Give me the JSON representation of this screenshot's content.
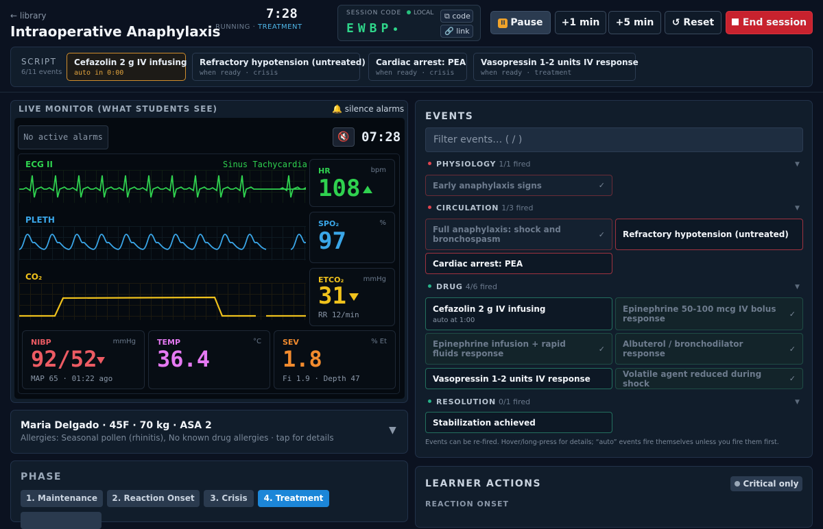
{
  "header": {
    "back_label": "← library",
    "title": "Intraoperative Anaphylaxis",
    "clock": "7:28",
    "run_status": "RUNNING",
    "run_sep": " · ",
    "run_phase": "TREATMENT"
  },
  "session": {
    "label": "SESSION CODE",
    "mode": "LOCAL",
    "code": "EWBP",
    "code_btn": "⧉ code",
    "link_btn": "🔗 link"
  },
  "controls": {
    "pause": "Pause",
    "pause_icon": "II",
    "add1": "+1 min",
    "add5": "+5 min",
    "reset": "↺ Reset",
    "end": "End session"
  },
  "script": {
    "label": "SCRIPT",
    "count": "6/11 events",
    "items": [
      {
        "title": "Cefazolin 2 g IV infusing",
        "sub": "auto in 0:00"
      },
      {
        "title": "Refractory hypotension (untreated)",
        "sub": "when ready · crisis"
      },
      {
        "title": "Cardiac arrest: PEA",
        "sub": "when ready · crisis"
      },
      {
        "title": "Vasopressin 1-2 units IV response",
        "sub": "when ready · treatment"
      }
    ]
  },
  "monitor": {
    "heading": "LIVE MONITOR (WHAT STUDENTS SEE)",
    "silence": "🔔 silence alarms",
    "alarms": "No active alarms",
    "mute_icon": "🔇",
    "clock": "07:28",
    "ecg_label": "ECG II",
    "rhythm": "Sinus Tachycardia",
    "pleth_label": "PLETH",
    "co2_label": "CO₂",
    "hr": {
      "name": "HR",
      "unit": "bpm",
      "value": "108",
      "trend": "up"
    },
    "spo2": {
      "name": "SPO₂",
      "unit": "%",
      "value": "97"
    },
    "etco2": {
      "name": "ETCO₂",
      "unit": "mmHg",
      "value": "31",
      "trend": "down",
      "sub": "RR 12/min"
    },
    "nibp": {
      "name": "NIBP",
      "unit": "mmHg",
      "value": "92/52",
      "trend": "down",
      "sub": "MAP 65 · 01:22 ago"
    },
    "temp": {
      "name": "TEMP",
      "unit": "°C",
      "value": "36.4"
    },
    "sev": {
      "name": "SEV",
      "unit": "% Et",
      "value": "1.8",
      "sub": "Fi 1.9 · Depth 47"
    },
    "colors": {
      "ecg": "#2fd14f",
      "pleth": "#3aa6e8",
      "co2": "#f0c21c",
      "nibp": "#ec5b63",
      "temp": "#e579f2",
      "sev": "#f28b2e"
    }
  },
  "patient": {
    "summary": "Maria Delgado · 45F · 70 kg · ASA 2",
    "allergies": "Allergies: Seasonal pollen (rhinitis), No known drug allergies · tap for details"
  },
  "phase": {
    "label": "PHASE",
    "items": [
      "1. Maintenance",
      "2. Reaction Onset",
      "3. Crisis",
      "4. Treatment"
    ],
    "active": "4. Treatment"
  },
  "events": {
    "title": "EVENTS",
    "filter_placeholder": "Filter events… ( / )",
    "sections": [
      {
        "name": "PHYSIOLOGY",
        "count": "1/1 fired"
      },
      {
        "name": "CIRCULATION",
        "count": "1/3 fired"
      },
      {
        "name": "DRUG",
        "count": "4/6 fired"
      },
      {
        "name": "RESOLUTION",
        "count": "0/1 fired"
      }
    ],
    "items": {
      "early": "Early anaphylaxis signs",
      "full": "Full anaphylaxis: shock and bronchospasm",
      "refractory": "Refractory hypotension (untreated)",
      "arrest": "Cardiac arrest: PEA",
      "cefazolin": "Cefazolin 2 g IV infusing",
      "cefazolin_sub": "auto at 1:00",
      "epi_bolus": "Epinephrine 50-100 mcg IV bolus response",
      "epi_infusion": "Epinephrine infusion + rapid fluids response",
      "albuterol": "Albuterol / bronchodilator response",
      "vasopressin": "Vasopressin 1-2 units IV response",
      "volatile": "Volatile agent reduced during shock",
      "stabilization": "Stabilization achieved"
    },
    "check": "✓",
    "note": "Events can be re-fired. Hover/long-press for details; “auto” events fire themselves unless you fire them first."
  },
  "learner": {
    "title": "LEARNER ACTIONS",
    "filter": "Critical only",
    "subheading": "REACTION ONSET"
  }
}
